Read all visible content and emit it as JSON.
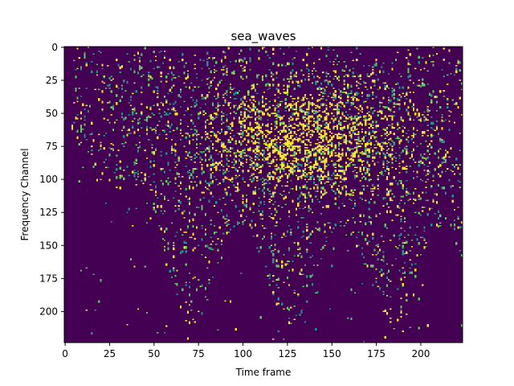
{
  "chart_data": {
    "type": "heatmap",
    "title": "sea_waves",
    "xlabel": "Time frame",
    "ylabel": "Frequency Channel",
    "xlim": [
      -0.5,
      223.5
    ],
    "ylim": [
      223.5,
      -0.5
    ],
    "n_time_frames": 224,
    "n_frequency_channels": 224,
    "y_axis_inverted": true,
    "x_ticks": [
      0,
      25,
      50,
      75,
      100,
      125,
      150,
      175,
      200
    ],
    "y_ticks": [
      0,
      25,
      50,
      75,
      100,
      125,
      150,
      175,
      200
    ],
    "colormap": [
      "#440154",
      "#3b528b",
      "#21918c",
      "#5ec962",
      "#fde725"
    ],
    "background_color": "#440154",
    "grid": false,
    "legend": "none",
    "description": "Sparse binary-like spectrogram: mostly dark purple with scattered teal/yellow spikes; density highest around time frames 80-200 and channels 20-110, activity starts after time frame ~5 and thins toward high channels."
  }
}
